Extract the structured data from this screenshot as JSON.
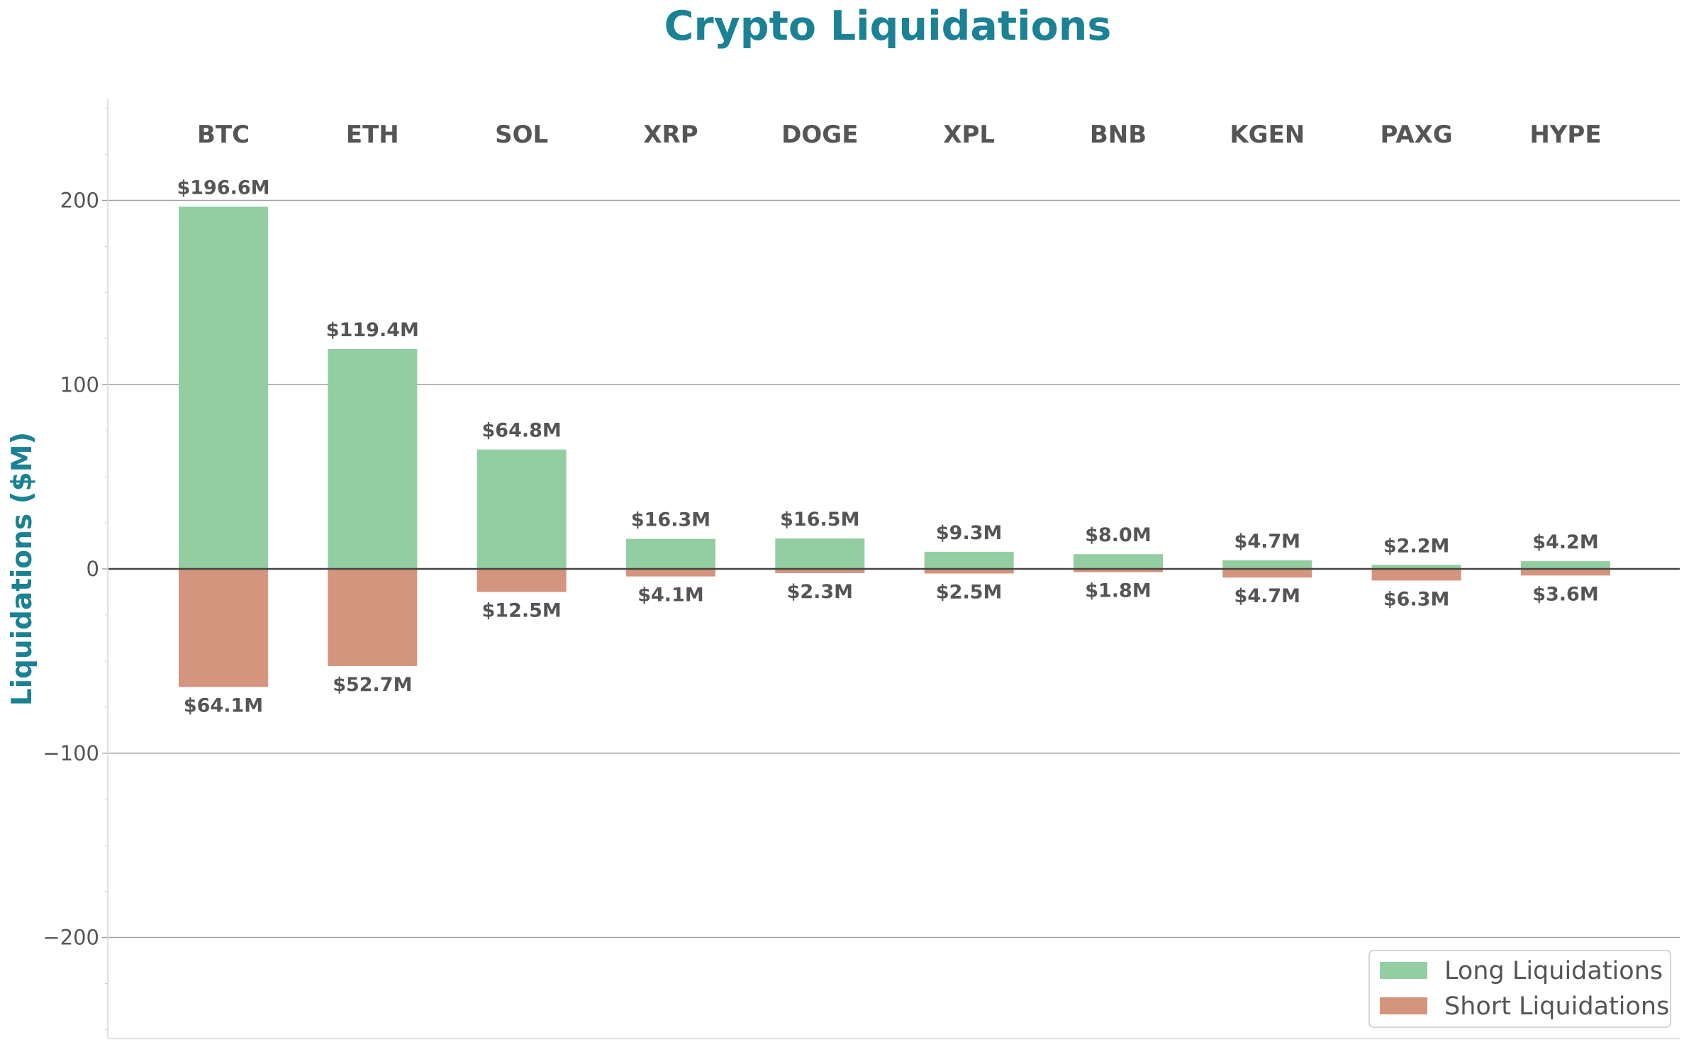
{
  "chart_data": {
    "type": "bar",
    "title": "Crypto Liquidations",
    "ylabel": "Liquidations ($M)",
    "xlabel": "",
    "categories": [
      "BTC",
      "ETH",
      "SOL",
      "XRP",
      "DOGE",
      "XPL",
      "BNB",
      "KGEN",
      "PAXG",
      "HYPE"
    ],
    "series": [
      {
        "name": "Long Liquidations",
        "color": "#93cea2",
        "values": [
          196.6,
          119.4,
          64.8,
          16.3,
          16.5,
          9.3,
          8.0,
          4.7,
          2.2,
          4.2
        ],
        "labels": [
          "$196.6M",
          "$119.4M",
          "$64.8M",
          "$16.3M",
          "$16.5M",
          "$9.3M",
          "$8.0M",
          "$4.7M",
          "$2.2M",
          "$4.2M"
        ]
      },
      {
        "name": "Short Liquidations",
        "color": "#d5947d",
        "values": [
          -64.1,
          -52.7,
          -12.5,
          -4.1,
          -2.3,
          -2.5,
          -1.8,
          -4.7,
          -6.3,
          -3.6
        ],
        "labels": [
          "$64.1M",
          "$52.7M",
          "$12.5M",
          "$4.1M",
          "$2.3M",
          "$2.5M",
          "$1.8M",
          "$4.7M",
          "$6.3M",
          "$3.6M"
        ]
      }
    ],
    "ylim": [
      -255,
      255
    ],
    "yticks": [
      200,
      100,
      0,
      -100,
      -200
    ],
    "ytick_labels": [
      "200",
      "100",
      "0",
      "−100",
      "−200"
    ],
    "grid": true,
    "legend_position": "bottom-right",
    "colors": {
      "title": "#1a8294",
      "text": "#555555",
      "grid": "#a0a0a0",
      "zero_line": "#444444"
    }
  }
}
